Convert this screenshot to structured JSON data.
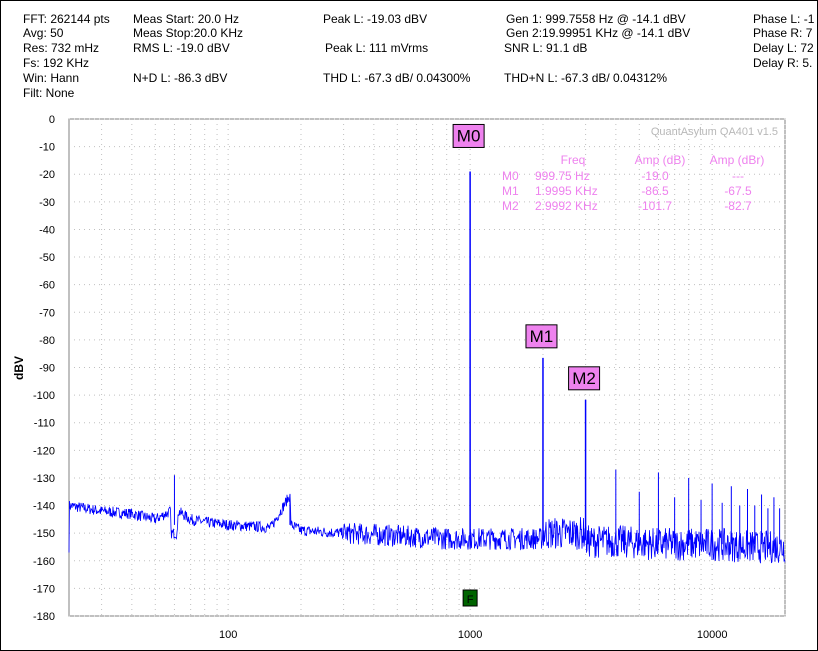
{
  "header": {
    "fft": "FFT: 262144 pts",
    "avg": "Avg: 50",
    "res": "Res: 732 mHz",
    "fs": "Fs: 192 KHz",
    "win": "Win: Hann",
    "filt": "Filt: None",
    "meas_start": "Meas Start: 20.0 Hz",
    "meas_stop": "Meas Stop:20.0 KHz",
    "rms_l": "RMS L: -19.0 dBV",
    "nd_l": "N+D L: -86.3 dBV",
    "peak_l_dbv": "Peak L: -19.03 dBV",
    "peak_l_mv": "Peak L: 111 mVrms",
    "thd_l": "THD L: -67.3 dB/ 0.04300%",
    "gen1": "Gen 1: 999.7558 Hz @ -14.1  dBV",
    "gen2": "Gen 2:19.99951 KHz @ -14.1  dBV",
    "snr_l": "SNR L: 91.1 dB",
    "thdn_l": "THD+N L: -67.3 dB/ 0.04312%",
    "phase_l": "Phase L: -1",
    "phase_r": "Phase R: 7",
    "delay_l": "Delay L: 72",
    "delay_r": "Delay R: 5."
  },
  "watermark": "QuantAsylum QA401 v1.5",
  "colors": {
    "trace": "#0000ff",
    "marker_text": "#ee82ee",
    "marker_box": "#ee82ee",
    "grid": "#c0c0c0",
    "f_marker": "#006400"
  },
  "f_marker_label": "F",
  "chart_data": {
    "type": "line",
    "ylabel": "dBV",
    "xlabel": "",
    "x_scale": "log",
    "xlim": [
      22,
      20000
    ],
    "ylim": [
      -180,
      0
    ],
    "x_tick_labels": [
      "100",
      "1000",
      "10000"
    ],
    "y_tick_labels": [
      "0",
      "-10",
      "-20",
      "-30",
      "-40",
      "-50",
      "-60",
      "-70",
      "-80",
      "-90",
      "-100",
      "-110",
      "-120",
      "-130",
      "-140",
      "-150",
      "-160",
      "-170",
      "-180"
    ],
    "series": [
      {
        "x": [
          22,
          30,
          40,
          50,
          58,
          60,
          62,
          70,
          80,
          100,
          150,
          178,
          180,
          182,
          200,
          300,
          500,
          800,
          999.75,
          1200,
          1999.5,
          2999.2,
          4000,
          6000,
          10000,
          15000,
          20000
        ],
        "y": [
          -140,
          -142,
          -143,
          -145,
          -142,
          -129,
          -142,
          -145,
          -146,
          -147,
          -148,
          -137,
          -136,
          -147,
          -149,
          -150,
          -151,
          -152,
          -19,
          -152,
          -86.5,
          -101.7,
          -153,
          -154,
          -154,
          -155,
          -155
        ]
      }
    ],
    "markers": [
      {
        "label": "M0",
        "freq": 999.75,
        "freq_text": "999.75 Hz",
        "amp": -19.0,
        "amp_text": "-19.0",
        "amp_dbr": "---"
      },
      {
        "label": "M1",
        "freq": 1999.5,
        "freq_text": "1.9995 KHz",
        "amp": -86.5,
        "amp_text": "-86.5",
        "amp_dbr": "-67.5"
      },
      {
        "label": "M2",
        "freq": 2999.2,
        "freq_text": "2.9992 KHz",
        "amp": -101.7,
        "amp_text": "-101.7",
        "amp_dbr": "-82.7"
      }
    ],
    "marker_table_headers": [
      "Freq",
      "Amp (dB)",
      "Amp (dBr)"
    ],
    "harmonics": [
      {
        "freq": 3999,
        "amp": -127
      },
      {
        "freq": 4999,
        "amp": -135
      },
      {
        "freq": 5998,
        "amp": -128
      },
      {
        "freq": 6998,
        "amp": -137
      },
      {
        "freq": 7998,
        "amp": -130
      },
      {
        "freq": 8998,
        "amp": -138
      },
      {
        "freq": 9998,
        "amp": -132
      },
      {
        "freq": 11000,
        "amp": -139
      },
      {
        "freq": 12000,
        "amp": -133
      },
      {
        "freq": 13000,
        "amp": -140
      },
      {
        "freq": 14000,
        "amp": -134
      },
      {
        "freq": 15000,
        "amp": -140
      },
      {
        "freq": 16000,
        "amp": -136
      },
      {
        "freq": 17000,
        "amp": -141
      },
      {
        "freq": 18000,
        "amp": -137
      },
      {
        "freq": 19000,
        "amp": -141
      }
    ],
    "grid": true,
    "legend": "none"
  }
}
